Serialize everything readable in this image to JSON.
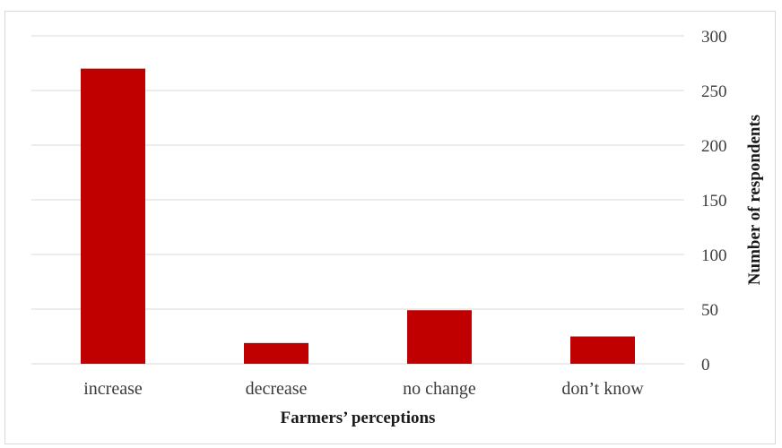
{
  "chart_data": {
    "type": "bar",
    "categories": [
      "increase",
      "decrease",
      "no change",
      "don’t know"
    ],
    "values": [
      270,
      19,
      49,
      25
    ],
    "xlabel": "Farmers’ perceptions",
    "ylabel": "Number of respondents",
    "ylim": [
      0,
      300
    ],
    "yticks": [
      0,
      50,
      100,
      150,
      200,
      250,
      300
    ],
    "y_axis_side": "right",
    "grid": true,
    "legend": "none",
    "bar_color": "#C00000",
    "grid_color": "#d9d9d9"
  }
}
